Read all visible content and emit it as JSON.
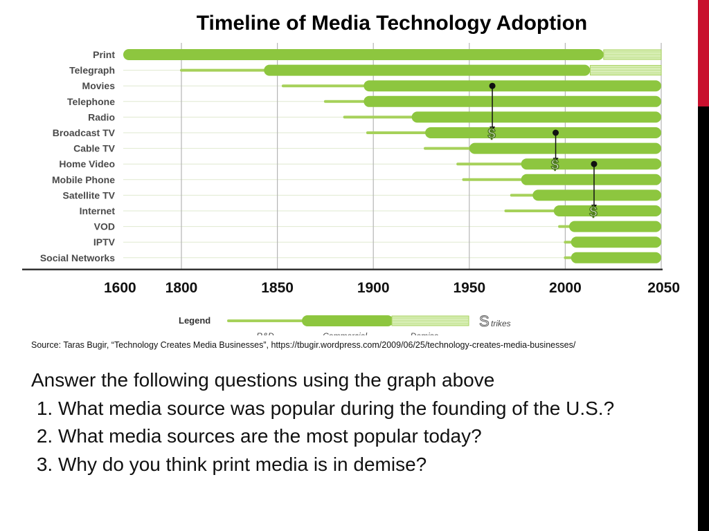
{
  "slide": {
    "source_note": "Source: Taras Bugir, “Technology Creates Media Businesses”, https://tbugir.wordpress.com/2009/06/25/technology-creates-media-businesses/",
    "intro": "Answer the following questions using the graph above",
    "questions": [
      "What media source was popular during the founding of the U.S.?",
      "What media sources are the most popular today?",
      "Why do you think print media is in demise?"
    ],
    "colors": {
      "edge_top": "#c8102e",
      "edge_bottom": "#000000"
    }
  },
  "chart_data": {
    "type": "bar",
    "subtype": "timeline",
    "title": "Timeline of Media Technology Adoption",
    "x_ticks": [
      1600,
      1800,
      1850,
      1900,
      1950,
      2000,
      2050
    ],
    "x_range": [
      1600,
      2050
    ],
    "grid": true,
    "colors": {
      "bar": "#8dc63f",
      "line": "#a6d15a",
      "demise": "#d8eeb5",
      "grid": "#b5b5b5",
      "title": "#222222"
    },
    "rows": [
      {
        "label": "Print",
        "rd_start": null,
        "commercial_start": 1600,
        "demise_start": 2020,
        "end": 2050
      },
      {
        "label": "Telegraph",
        "rd_start": 1800,
        "commercial_start": 1843,
        "demise_start": 2013,
        "end": 2050
      },
      {
        "label": "Movies",
        "rd_start": 1853,
        "commercial_start": 1895,
        "demise_start": null,
        "end": 2050
      },
      {
        "label": "Telephone",
        "rd_start": 1875,
        "commercial_start": 1895,
        "demise_start": null,
        "end": 2050
      },
      {
        "label": "Radio",
        "rd_start": 1885,
        "commercial_start": 1920,
        "demise_start": null,
        "end": 2050
      },
      {
        "label": "Broadcast TV",
        "rd_start": 1897,
        "commercial_start": 1927,
        "demise_start": null,
        "end": 2050
      },
      {
        "label": "Cable TV",
        "rd_start": 1927,
        "commercial_start": 1950,
        "demise_start": null,
        "end": 2050
      },
      {
        "label": "Home Video",
        "rd_start": 1944,
        "commercial_start": 1977,
        "demise_start": null,
        "end": 2050
      },
      {
        "label": "Mobile Phone",
        "rd_start": 1947,
        "commercial_start": 1977,
        "demise_start": null,
        "end": 2050
      },
      {
        "label": "Satellite TV",
        "rd_start": 1972,
        "commercial_start": 1983,
        "demise_start": null,
        "end": 2050
      },
      {
        "label": "Internet",
        "rd_start": 1969,
        "commercial_start": 1994,
        "demise_start": null,
        "end": 2050
      },
      {
        "label": "VOD",
        "rd_start": 1997,
        "commercial_start": 2002,
        "demise_start": null,
        "end": 2050
      },
      {
        "label": "IPTV",
        "rd_start": 2000,
        "commercial_start": 2003,
        "demise_start": null,
        "end": 2050
      },
      {
        "label": "Social Networks",
        "rd_start": 2000,
        "commercial_start": 2003,
        "demise_start": null,
        "end": 2050
      }
    ],
    "strikes": [
      {
        "year": 1962,
        "from_row": "Movies",
        "to_row": "Broadcast TV"
      },
      {
        "year": 1995,
        "from_row": "Broadcast TV",
        "to_row": "Home Video"
      },
      {
        "year": 2015,
        "from_row": "Home Video",
        "to_row": "Internet"
      }
    ],
    "strike_symbol": "$",
    "legend": {
      "title": "Legend",
      "items": [
        "R&D",
        "Commercial",
        "Demise"
      ],
      "strikes_symbol": "S",
      "strikes_label": "trikes"
    }
  }
}
